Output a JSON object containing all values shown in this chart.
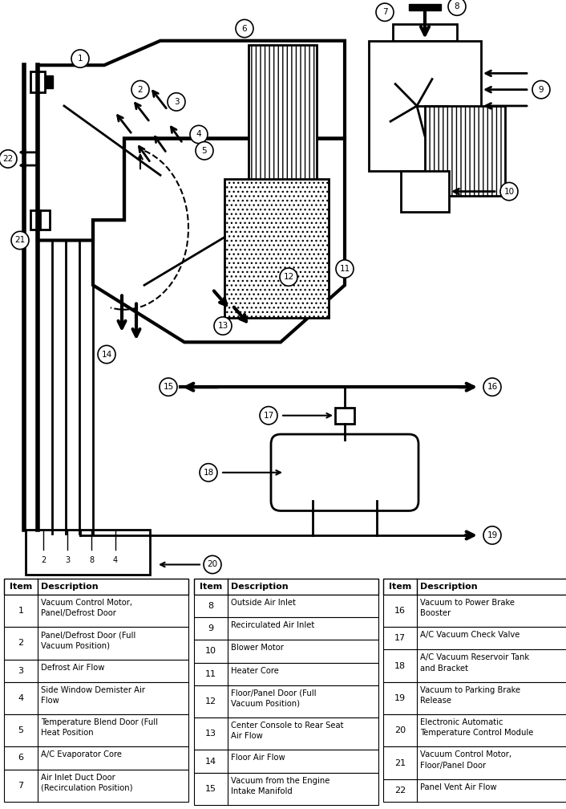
{
  "items_col1": [
    [
      1,
      "Vacuum Control Motor,\nPanel/Defrost Door"
    ],
    [
      2,
      "Panel/Defrost Door (Full\nVacuum Position)"
    ],
    [
      3,
      "Defrost Air Flow"
    ],
    [
      4,
      "Side Window Demister Air\nFlow"
    ],
    [
      5,
      "Temperature Blend Door (Full\nHeat Position"
    ],
    [
      6,
      "A/C Evaporator Core"
    ],
    [
      7,
      "Air Inlet Duct Door\n(Recirculation Position)"
    ]
  ],
  "items_col2": [
    [
      8,
      "Outside Air Inlet"
    ],
    [
      9,
      "Recirculated Air Inlet"
    ],
    [
      10,
      "Blower Motor"
    ],
    [
      11,
      "Heater Core"
    ],
    [
      12,
      "Floor/Panel Door (Full\nVacuum Position)"
    ],
    [
      13,
      "Center Console to Rear Seat\nAir Flow"
    ],
    [
      14,
      "Floor Air Flow"
    ],
    [
      15,
      "Vacuum from the Engine\nIntake Manifold"
    ]
  ],
  "items_col3": [
    [
      16,
      "Vacuum to Power Brake\nBooster"
    ],
    [
      17,
      "A/C Vacuum Check Valve"
    ],
    [
      18,
      "A/C Vacuum Reservoir Tank\nand Bracket"
    ],
    [
      19,
      "Vacuum to Parking Brake\nRelease"
    ],
    [
      20,
      "Electronic Automatic\nTemperature Control Module"
    ],
    [
      21,
      "Vacuum Control Motor,\nFloor/Panel Door"
    ],
    [
      22,
      "Panel Vent Air Flow"
    ]
  ]
}
